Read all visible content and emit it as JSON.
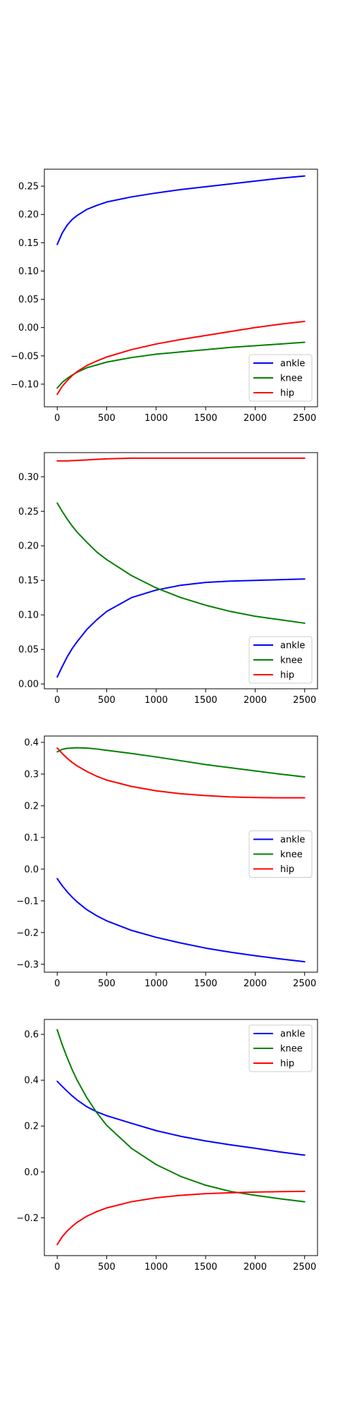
{
  "chart_data": [
    {
      "type": "line",
      "xlim": [
        -130,
        2630
      ],
      "ylim": [
        -0.14,
        0.28
      ],
      "xticks": [
        0,
        500,
        1000,
        1500,
        2000,
        2500
      ],
      "yticks": [
        -0.1,
        -0.05,
        0.0,
        0.05,
        0.1,
        0.15,
        0.2,
        0.25
      ],
      "ytick_labels": [
        "−0.10",
        "−0.05",
        "0.00",
        "0.05",
        "0.10",
        "0.15",
        "0.20",
        "0.25"
      ],
      "legend": "lower right",
      "grid": false,
      "series": [
        {
          "name": "ankle",
          "color": "#0000ff",
          "x": [
            0,
            50,
            100,
            150,
            200,
            300,
            400,
            500,
            750,
            1000,
            1250,
            1500,
            1750,
            2000,
            2250,
            2500
          ],
          "y": [
            0.147,
            0.167,
            0.181,
            0.191,
            0.198,
            0.209,
            0.216,
            0.222,
            0.231,
            0.238,
            0.244,
            0.249,
            0.254,
            0.259,
            0.264,
            0.268
          ]
        },
        {
          "name": "knee",
          "color": "#008000",
          "x": [
            0,
            50,
            100,
            150,
            200,
            300,
            400,
            500,
            750,
            1000,
            1250,
            1500,
            1750,
            2000,
            2250,
            2500
          ],
          "y": [
            -0.107,
            -0.097,
            -0.09,
            -0.084,
            -0.079,
            -0.071,
            -0.066,
            -0.061,
            -0.053,
            -0.047,
            -0.043,
            -0.039,
            -0.035,
            -0.032,
            -0.029,
            -0.026
          ]
        },
        {
          "name": "hip",
          "color": "#ff0000",
          "x": [
            0,
            50,
            100,
            150,
            200,
            300,
            400,
            500,
            750,
            1000,
            1250,
            1500,
            1750,
            2000,
            2250,
            2500
          ],
          "y": [
            -0.118,
            -0.104,
            -0.094,
            -0.085,
            -0.078,
            -0.067,
            -0.059,
            -0.052,
            -0.039,
            -0.029,
            -0.021,
            -0.014,
            -0.007,
            0.0,
            0.006,
            0.011
          ]
        }
      ]
    },
    {
      "type": "line",
      "xlim": [
        -130,
        2630
      ],
      "ylim": [
        -0.007,
        0.335
      ],
      "xticks": [
        0,
        500,
        1000,
        1500,
        2000,
        2500
      ],
      "yticks": [
        0.0,
        0.05,
        0.1,
        0.15,
        0.2,
        0.25,
        0.3
      ],
      "ytick_labels": [
        "0.00",
        "0.05",
        "0.10",
        "0.15",
        "0.20",
        "0.25",
        "0.30"
      ],
      "legend": "lower right",
      "grid": false,
      "series": [
        {
          "name": "ankle",
          "color": "#0000ff",
          "x": [
            0,
            50,
            100,
            150,
            200,
            300,
            400,
            500,
            750,
            1000,
            1250,
            1500,
            1750,
            2000,
            2250,
            2500
          ],
          "y": [
            0.01,
            0.025,
            0.039,
            0.051,
            0.061,
            0.079,
            0.093,
            0.105,
            0.125,
            0.136,
            0.143,
            0.147,
            0.149,
            0.15,
            0.151,
            0.152
          ]
        },
        {
          "name": "knee",
          "color": "#008000",
          "x": [
            0,
            50,
            100,
            150,
            200,
            300,
            400,
            500,
            750,
            1000,
            1250,
            1500,
            1750,
            2000,
            2250,
            2500
          ],
          "y": [
            0.262,
            0.25,
            0.239,
            0.229,
            0.22,
            0.205,
            0.191,
            0.18,
            0.157,
            0.139,
            0.125,
            0.114,
            0.105,
            0.098,
            0.093,
            0.088
          ]
        },
        {
          "name": "hip",
          "color": "#ff0000",
          "x": [
            0,
            100,
            250,
            500,
            750,
            1000,
            1250,
            1500,
            2000,
            2500
          ],
          "y": [
            0.323,
            0.323,
            0.324,
            0.326,
            0.327,
            0.327,
            0.327,
            0.327,
            0.327,
            0.327
          ]
        }
      ]
    },
    {
      "type": "line",
      "xlim": [
        -130,
        2630
      ],
      "ylim": [
        -0.325,
        0.42
      ],
      "xticks": [
        0,
        500,
        1000,
        1500,
        2000,
        2500
      ],
      "yticks": [
        -0.3,
        -0.2,
        -0.1,
        0.0,
        0.1,
        0.2,
        0.3,
        0.4
      ],
      "ytick_labels": [
        "−0.3",
        "−0.2",
        "−0.1",
        "0.0",
        "0.1",
        "0.2",
        "0.3",
        "0.4"
      ],
      "legend": "center right",
      "grid": false,
      "series": [
        {
          "name": "ankle",
          "color": "#0000ff",
          "x": [
            0,
            50,
            100,
            150,
            200,
            300,
            400,
            500,
            750,
            1000,
            1250,
            1500,
            1750,
            2000,
            2250,
            2500
          ],
          "y": [
            -0.03,
            -0.052,
            -0.071,
            -0.088,
            -0.103,
            -0.128,
            -0.147,
            -0.163,
            -0.193,
            -0.215,
            -0.233,
            -0.249,
            -0.262,
            -0.273,
            -0.283,
            -0.292
          ]
        },
        {
          "name": "knee",
          "color": "#008000",
          "x": [
            0,
            50,
            100,
            200,
            300,
            400,
            500,
            750,
            1000,
            1250,
            1500,
            1750,
            2000,
            2250,
            2500
          ],
          "y": [
            0.37,
            0.378,
            0.381,
            0.383,
            0.382,
            0.379,
            0.375,
            0.365,
            0.354,
            0.342,
            0.33,
            0.32,
            0.31,
            0.3,
            0.291
          ]
        },
        {
          "name": "hip",
          "color": "#ff0000",
          "x": [
            0,
            50,
            100,
            150,
            200,
            300,
            400,
            500,
            750,
            1000,
            1250,
            1500,
            1750,
            2000,
            2250,
            2500
          ],
          "y": [
            0.382,
            0.365,
            0.35,
            0.337,
            0.326,
            0.308,
            0.293,
            0.281,
            0.261,
            0.247,
            0.238,
            0.232,
            0.228,
            0.226,
            0.225,
            0.225
          ]
        }
      ]
    },
    {
      "type": "line",
      "xlim": [
        -130,
        2630
      ],
      "ylim": [
        -0.365,
        0.665
      ],
      "xticks": [
        0,
        500,
        1000,
        1500,
        2000,
        2500
      ],
      "yticks": [
        -0.2,
        0.0,
        0.2,
        0.4,
        0.6
      ],
      "ytick_labels": [
        "−0.2",
        "0.0",
        "0.2",
        "0.4",
        "0.6"
      ],
      "legend": "upper right",
      "grid": false,
      "series": [
        {
          "name": "ankle",
          "color": "#0000ff",
          "x": [
            0,
            50,
            100,
            150,
            200,
            300,
            400,
            500,
            750,
            1000,
            1250,
            1500,
            1750,
            2000,
            2250,
            2500
          ],
          "y": [
            0.395,
            0.373,
            0.352,
            0.332,
            0.314,
            0.284,
            0.262,
            0.245,
            0.212,
            0.18,
            0.155,
            0.135,
            0.118,
            0.103,
            0.087,
            0.073
          ]
        },
        {
          "name": "knee",
          "color": "#008000",
          "x": [
            0,
            50,
            100,
            150,
            200,
            300,
            400,
            500,
            750,
            1000,
            1250,
            1500,
            1750,
            2000,
            2250,
            2500
          ],
          "y": [
            0.62,
            0.555,
            0.499,
            0.447,
            0.401,
            0.323,
            0.258,
            0.203,
            0.103,
            0.032,
            -0.02,
            -0.058,
            -0.085,
            -0.102,
            -0.117,
            -0.13
          ]
        },
        {
          "name": "hip",
          "color": "#ff0000",
          "x": [
            0,
            50,
            100,
            150,
            200,
            300,
            400,
            500,
            750,
            1000,
            1250,
            1500,
            1750,
            2000,
            2250,
            2500
          ],
          "y": [
            -0.317,
            -0.283,
            -0.258,
            -0.238,
            -0.22,
            -0.193,
            -0.173,
            -0.157,
            -0.13,
            -0.113,
            -0.102,
            -0.095,
            -0.091,
            -0.088,
            -0.086,
            -0.085
          ]
        }
      ]
    }
  ]
}
